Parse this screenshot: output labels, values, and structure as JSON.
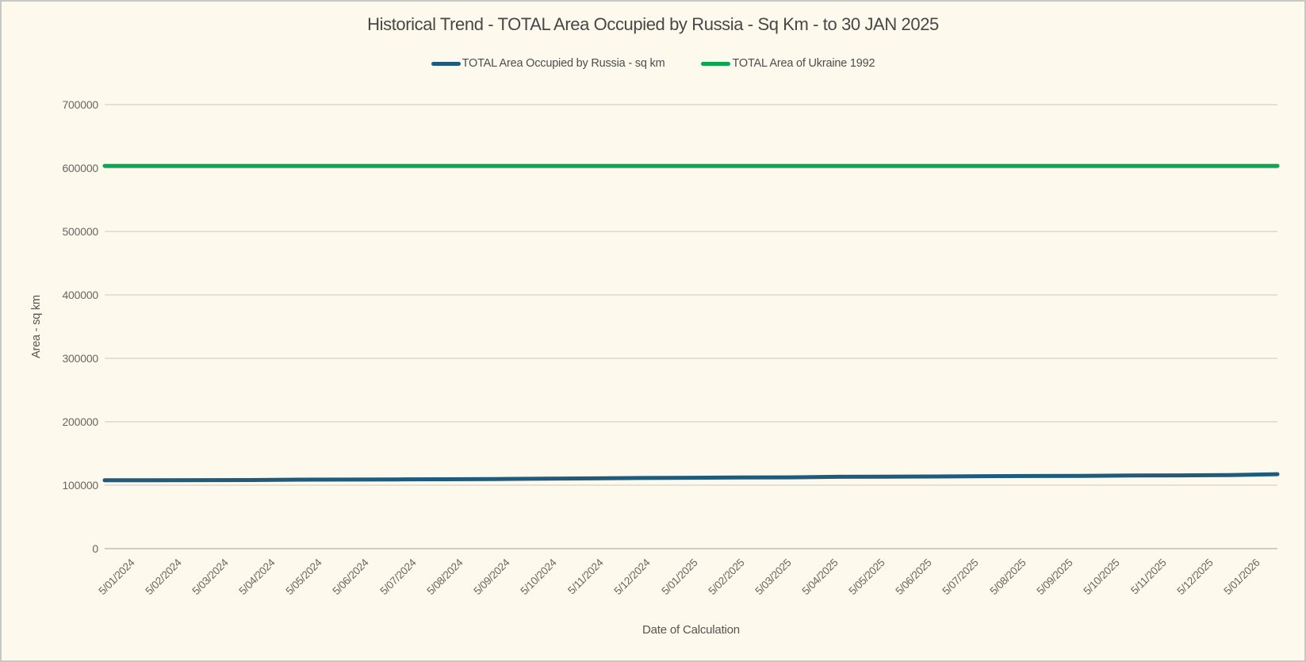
{
  "window": {
    "background_color": "#FDF9EC",
    "border_color": "#C7C7C7",
    "gridline_color": "#E3E0D9",
    "axis_line_color": "#CFCCC5",
    "title_color": "#474747",
    "tick_label_color": "#6B665F"
  },
  "chart_data": {
    "type": "line",
    "title": "Historical Trend - TOTAL Area Occupied by Russia - Sq Km - to 30 JAN 2025",
    "xlabel": "Date of Calculation",
    "ylabel": "Area - sq km",
    "ylim": [
      0,
      700000
    ],
    "y_ticks": [
      0,
      100000,
      200000,
      300000,
      400000,
      500000,
      600000,
      700000
    ],
    "grid": true,
    "legend_position": "top",
    "categories": [
      "5/01/2024",
      "5/02/2024",
      "5/03/2024",
      "5/04/2024",
      "5/05/2024",
      "5/06/2024",
      "5/07/2024",
      "5/08/2024",
      "5/09/2024",
      "5/10/2024",
      "5/11/2024",
      "5/12/2024",
      "5/01/2025",
      "5/02/2025",
      "5/03/2025",
      "5/04/2025",
      "5/05/2025",
      "5/06/2025",
      "5/07/2025",
      "5/08/2025",
      "5/09/2025",
      "5/10/2025",
      "5/11/2025",
      "5/12/2025",
      "5/01/2026"
    ],
    "series": [
      {
        "name": "TOTAL Area Occupied by Russia - sq km",
        "color": "#1F5B7C",
        "line_width": 5,
        "values": [
          107800,
          107900,
          108000,
          108100,
          108700,
          108900,
          109100,
          109400,
          109700,
          110400,
          110700,
          111400,
          111800,
          112100,
          112400,
          113200,
          113500,
          113800,
          114200,
          114500,
          114800,
          115300,
          115500,
          115900,
          117400
        ]
      },
      {
        "name": "TOTAL Area of Ukraine 1992",
        "color": "#0BA650",
        "line_width": 5,
        "values": [
          603550,
          603550,
          603550,
          603550,
          603550,
          603550,
          603550,
          603550,
          603550,
          603550,
          603550,
          603550,
          603550,
          603550,
          603550,
          603550,
          603550,
          603550,
          603550,
          603550,
          603550,
          603550,
          603550,
          603550,
          603550
        ]
      }
    ]
  }
}
